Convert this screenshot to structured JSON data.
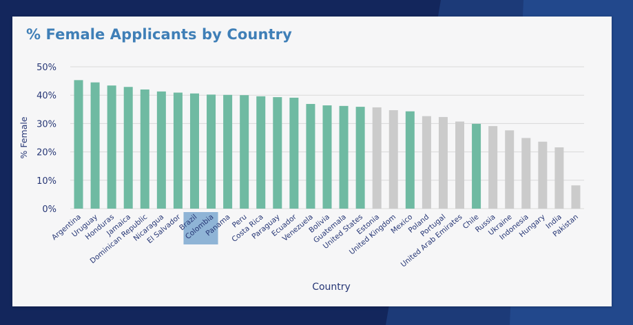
{
  "colors": {
    "background": "#13265c",
    "card": "#f6f6f7",
    "title": "#3f7fb7",
    "highlight_bar": "#6fbaa2",
    "other_bar": "#cbcbcb",
    "grid": "#d9d9d9",
    "text": "#263675",
    "selection": "#8fb4d6"
  },
  "chart_data": {
    "type": "bar",
    "title": "% Female Applicants by Country",
    "xlabel": "Country",
    "ylabel": "% Female",
    "ylim": [
      0,
      50
    ],
    "yticks": [
      "0%",
      "10%",
      "20%",
      "30%",
      "40%",
      "50%"
    ],
    "grid": true,
    "categories": [
      "Argentina",
      "Uruguay",
      "Honduras",
      "Jamaica",
      "Dominican Republic",
      "Nicaragua",
      "El Salvador",
      "Brazil",
      "Colombia",
      "Panama",
      "Peru",
      "Costa Rica",
      "Paraguay",
      "Ecuador",
      "Venezuela",
      "Bolivia",
      "Guatemala",
      "United States",
      "Estonia",
      "United Kingdom",
      "Mexico",
      "Poland",
      "Portugal",
      "United Arab Emirates",
      "Chile",
      "Russia",
      "Ukraine",
      "Indonesia",
      "Hungary",
      "India",
      "Pakistan"
    ],
    "values": [
      45.3,
      44.5,
      43.4,
      42.9,
      42.0,
      41.3,
      40.9,
      40.6,
      40.2,
      40.1,
      40.0,
      39.6,
      39.3,
      39.1,
      36.9,
      36.4,
      36.2,
      35.9,
      35.7,
      34.7,
      34.3,
      32.6,
      32.3,
      30.7,
      29.9,
      29.1,
      27.6,
      24.9,
      23.6,
      21.6,
      8.2
    ],
    "highlighted": [
      true,
      true,
      true,
      true,
      true,
      true,
      true,
      true,
      true,
      true,
      true,
      true,
      true,
      true,
      true,
      true,
      true,
      true,
      false,
      false,
      true,
      false,
      false,
      false,
      true,
      false,
      false,
      false,
      false,
      false,
      false
    ],
    "selected_categories": [
      "Brazil",
      "Colombia"
    ]
  }
}
